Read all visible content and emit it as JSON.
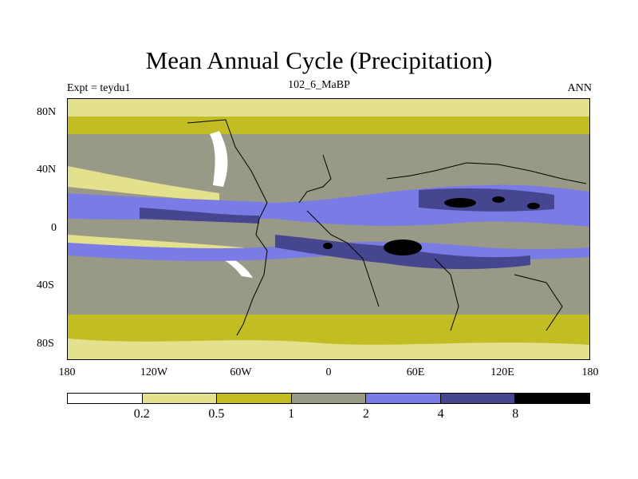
{
  "title": "Mean Annual Cycle (Precipitation)",
  "left_label": "Expt = teydu1",
  "center_label": "102_6_MaBP",
  "right_label": "ANN",
  "lat_ticks": [
    "80N",
    "40N",
    "0",
    "40S",
    "80S"
  ],
  "lon_ticks": [
    "180",
    "120W",
    "60W",
    "0",
    "60E",
    "120E",
    "180"
  ],
  "colorbar": {
    "levels": [
      "0.2",
      "0.5",
      "1",
      "2",
      "4",
      "8"
    ],
    "colors": [
      "#ffffff",
      "#e3e08e",
      "#c2bd22",
      "#999987",
      "#7b7be6",
      "#464690",
      "#000000"
    ]
  }
}
